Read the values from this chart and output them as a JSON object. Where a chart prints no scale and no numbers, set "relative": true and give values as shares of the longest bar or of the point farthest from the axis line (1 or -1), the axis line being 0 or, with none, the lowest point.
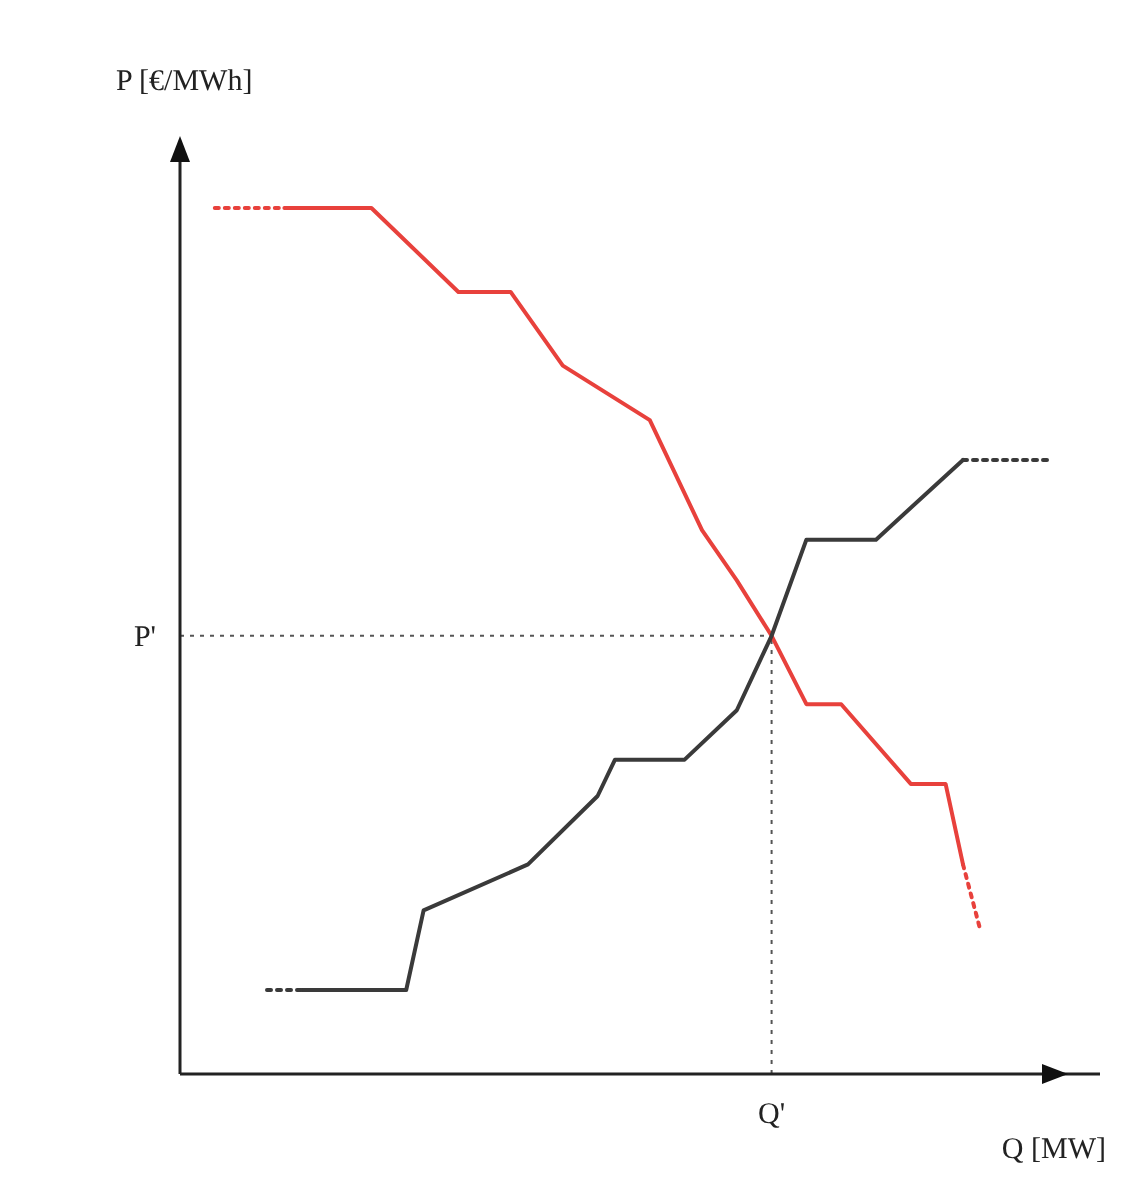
{
  "chart_data": {
    "type": "line",
    "relative": true,
    "xlabel": "Q [MW]",
    "ylabel": "P [€/MWh]",
    "marker": "none",
    "categories": [
      null,
      null,
      null,
      null,
      null,
      null,
      null,
      null,
      null,
      null,
      null,
      null,
      null,
      null,
      null,
      null,
      null,
      null,
      null,
      null,
      null,
      null,
      null,
      null,
      null,
      null,
      null,
      null,
      null,
      null,
      null,
      null,
      null,
      null,
      null,
      null,
      null,
      null,
      null,
      null,
      null,
      null,
      null,
      null,
      null,
      null,
      null,
      null,
      null,
      null,
      null
    ],
    "series": [
      {
        "color": "#e8413c",
        "line_style": "solid",
        "values": [
          null,
          null,
          null,
          null,
          null,
          null,
          1,
          null,
          null,
          null,
          null,
          1,
          null,
          null,
          null,
          null,
          0.903,
          null,
          null,
          0.903,
          null,
          null,
          0.818,
          null,
          null,
          null,
          null,
          0.755,
          null,
          null,
          0.628,
          null,
          0.57,
          null,
          0.506,
          null,
          0.427,
          null,
          0.427,
          null,
          null,
          null,
          0.335,
          null,
          0.335,
          0.242,
          null,
          null,
          null,
          null,
          null
        ]
      },
      {
        "color": "#e8413c",
        "line_style": "dotted",
        "values": [
          null,
          null,
          1,
          null,
          null,
          null,
          1,
          null,
          null,
          null,
          null,
          null,
          null,
          null,
          null,
          null,
          null,
          null,
          null,
          null,
          null,
          null,
          null,
          null,
          null,
          null,
          null,
          null,
          null,
          null,
          null,
          null,
          null,
          null,
          null,
          null,
          null,
          null,
          null,
          null,
          null,
          null,
          null,
          null,
          null,
          null,
          null,
          null,
          null,
          null,
          null
        ]
      },
      {
        "color": "#e8413c",
        "line_style": "dotted",
        "values": [
          null,
          null,
          null,
          null,
          null,
          null,
          null,
          null,
          null,
          null,
          null,
          null,
          null,
          null,
          null,
          null,
          null,
          null,
          null,
          null,
          null,
          null,
          null,
          null,
          null,
          null,
          null,
          null,
          null,
          null,
          null,
          null,
          null,
          null,
          null,
          null,
          null,
          null,
          null,
          null,
          null,
          null,
          null,
          null,
          null,
          0.242,
          0.166,
          null,
          null,
          null,
          null
        ]
      },
      {
        "color": "#3a3a3a",
        "line_style": "solid",
        "values": [
          null,
          null,
          null,
          null,
          null,
          null,
          null,
          0.097,
          null,
          null,
          null,
          null,
          null,
          0.097,
          0.189,
          null,
          null,
          null,
          null,
          null,
          0.242,
          null,
          null,
          null,
          0.321,
          0.363,
          null,
          null,
          null,
          0.363,
          null,
          null,
          0.42,
          null,
          0.506,
          null,
          0.617,
          null,
          null,
          null,
          0.617,
          null,
          null,
          null,
          null,
          0.709,
          null,
          null,
          null,
          null,
          null
        ]
      },
      {
        "color": "#3a3a3a",
        "line_style": "dotted",
        "values": [
          null,
          null,
          null,
          null,
          null,
          0.097,
          null,
          0.097,
          null,
          null,
          null,
          null,
          null,
          null,
          null,
          null,
          null,
          null,
          null,
          null,
          null,
          null,
          null,
          null,
          null,
          null,
          null,
          null,
          null,
          null,
          null,
          null,
          null,
          null,
          null,
          null,
          null,
          null,
          null,
          null,
          null,
          null,
          null,
          null,
          null,
          null,
          null,
          null,
          null,
          null,
          null
        ]
      },
      {
        "color": "#3a3a3a",
        "line_style": "dotted",
        "values": [
          null,
          null,
          null,
          null,
          null,
          null,
          null,
          null,
          null,
          null,
          null,
          null,
          null,
          null,
          null,
          null,
          null,
          null,
          null,
          null,
          null,
          null,
          null,
          null,
          null,
          null,
          null,
          null,
          null,
          null,
          null,
          null,
          null,
          null,
          null,
          null,
          null,
          null,
          null,
          null,
          null,
          null,
          null,
          null,
          null,
          0.709,
          null,
          null,
          null,
          null,
          0.709
        ]
      }
    ],
    "ref_lines": [
      {
        "axis": "y",
        "value": 0.506,
        "label": "P'",
        "line_style": "dotted",
        "color": "#555555"
      },
      {
        "axis": "x",
        "label": "Q'",
        "line_style": "dotted",
        "color": "#555555"
      }
    ]
  }
}
